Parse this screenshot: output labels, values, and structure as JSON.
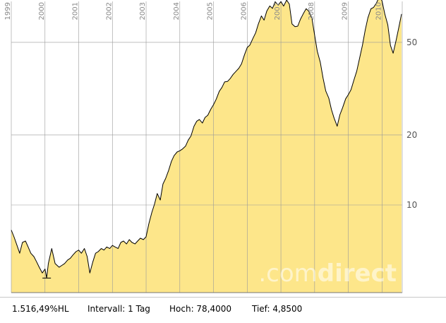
{
  "chart_data": {
    "type": "area",
    "title": "",
    "xlabel": "",
    "ylabel": "",
    "y_scale": "log",
    "ylim": [
      4.2,
      75
    ],
    "xlim": [
      1999.0,
      2010.6
    ],
    "x_tick_labels": [
      "1999",
      "2000",
      "2001",
      "2002",
      "2003",
      "2004",
      "2005",
      "2006",
      "2007",
      "2008",
      "2009",
      "2010"
    ],
    "x_ticks": [
      1999,
      2000,
      2001,
      2002,
      2003,
      2004,
      2005,
      2006,
      2007,
      2008,
      2009,
      2010
    ],
    "y_ticks": [
      10,
      20,
      50
    ],
    "y_tick_labels": [
      "10",
      "20",
      "50"
    ],
    "grid": true,
    "fill_color": "#fde68a",
    "line_color": "#000000",
    "grid_color": "#999999",
    "series": [
      {
        "x": [
          1999.0,
          1999.08,
          1999.17,
          1999.25,
          1999.33,
          1999.42,
          1999.5,
          1999.58,
          1999.67,
          1999.75,
          1999.83,
          1999.92,
          2000.0,
          2000.05,
          2000.1,
          2000.2,
          2000.3,
          2000.42,
          2000.5,
          2000.58,
          2000.67,
          2000.75,
          2000.83,
          2000.92,
          2001.0,
          2001.08,
          2001.17,
          2001.25,
          2001.33,
          2001.42,
          2001.5,
          2001.58,
          2001.67,
          2001.75,
          2001.83,
          2001.92,
          2002.0,
          2002.08,
          2002.17,
          2002.25,
          2002.33,
          2002.42,
          2002.5,
          2002.58,
          2002.67,
          2002.75,
          2002.83,
          2002.92,
          2003.0,
          2003.08,
          2003.17,
          2003.25,
          2003.33,
          2003.42,
          2003.5,
          2003.58,
          2003.67,
          2003.75,
          2003.83,
          2003.92,
          2004.0,
          2004.08,
          2004.17,
          2004.25,
          2004.33,
          2004.42,
          2004.5,
          2004.58,
          2004.67,
          2004.75,
          2004.83,
          2004.92,
          2005.0,
          2005.08,
          2005.17,
          2005.25,
          2005.33,
          2005.42,
          2005.5,
          2005.58,
          2005.67,
          2005.75,
          2005.83,
          2005.92,
          2006.0,
          2006.08,
          2006.17,
          2006.25,
          2006.33,
          2006.42,
          2006.5,
          2006.58,
          2006.67,
          2006.75,
          2006.83,
          2006.92,
          2007.0,
          2007.08,
          2007.17,
          2007.25,
          2007.33,
          2007.42,
          2007.5,
          2007.58,
          2007.67,
          2007.75,
          2007.83,
          2007.92,
          2008.0,
          2008.08,
          2008.17,
          2008.25,
          2008.33,
          2008.42,
          2008.5,
          2008.58,
          2008.67,
          2008.75,
          2008.83,
          2008.92,
          2009.0,
          2009.08,
          2009.17,
          2009.25,
          2009.33,
          2009.42,
          2009.5,
          2009.58,
          2009.67,
          2009.75,
          2009.83,
          2009.92,
          2010.0,
          2010.08,
          2010.17,
          2010.25,
          2010.33,
          2010.42,
          2010.5,
          2010.58
        ],
        "values": [
          7.8,
          7.3,
          6.7,
          6.2,
          6.9,
          7.0,
          6.6,
          6.2,
          6.0,
          5.7,
          5.4,
          5.1,
          5.3,
          4.85,
          5.6,
          6.5,
          5.6,
          5.4,
          5.5,
          5.6,
          5.8,
          5.9,
          6.1,
          6.3,
          6.4,
          6.2,
          6.5,
          6.0,
          5.1,
          5.7,
          6.2,
          6.3,
          6.5,
          6.4,
          6.6,
          6.5,
          6.7,
          6.6,
          6.5,
          6.9,
          7.0,
          6.8,
          7.1,
          6.9,
          6.8,
          7.0,
          7.2,
          7.1,
          7.3,
          8.3,
          9.3,
          10.1,
          11.2,
          10.5,
          12.3,
          13.0,
          14.1,
          15.4,
          16.3,
          16.9,
          17.1,
          17.4,
          17.9,
          19.0,
          19.8,
          21.8,
          22.9,
          23.3,
          22.5,
          23.8,
          24.3,
          25.8,
          27.0,
          28.5,
          30.8,
          32.0,
          33.8,
          34.0,
          35.0,
          36.4,
          37.6,
          38.7,
          40.4,
          44.3,
          47.5,
          48.7,
          52.0,
          55.0,
          60.0,
          65.0,
          62.3,
          68.1,
          71.7,
          70.0,
          74.8,
          72.3,
          74.9,
          71.6,
          76.0,
          73.0,
          60.0,
          58.4,
          58.7,
          62.9,
          66.7,
          69.8,
          68.0,
          63.5,
          53.8,
          45.8,
          41.0,
          35.1,
          30.9,
          28.8,
          25.7,
          23.6,
          21.8,
          24.4,
          26.2,
          28.6,
          29.8,
          31.3,
          34.6,
          37.6,
          42.4,
          48.6,
          56.4,
          63.7,
          69.7,
          70.7,
          73.6,
          78.4,
          75.5,
          66.4,
          59.5,
          48.5,
          44.9,
          51.2,
          58.1,
          66.2
        ]
      }
    ]
  },
  "watermark": {
    "prefix": ".com",
    "suffix": "direct"
  },
  "footer": {
    "change": "1.516,49%HL",
    "interval": "Intervall: 1 Tag",
    "high": "Hoch: 78,4000",
    "low": "Tief: 4,8500"
  }
}
